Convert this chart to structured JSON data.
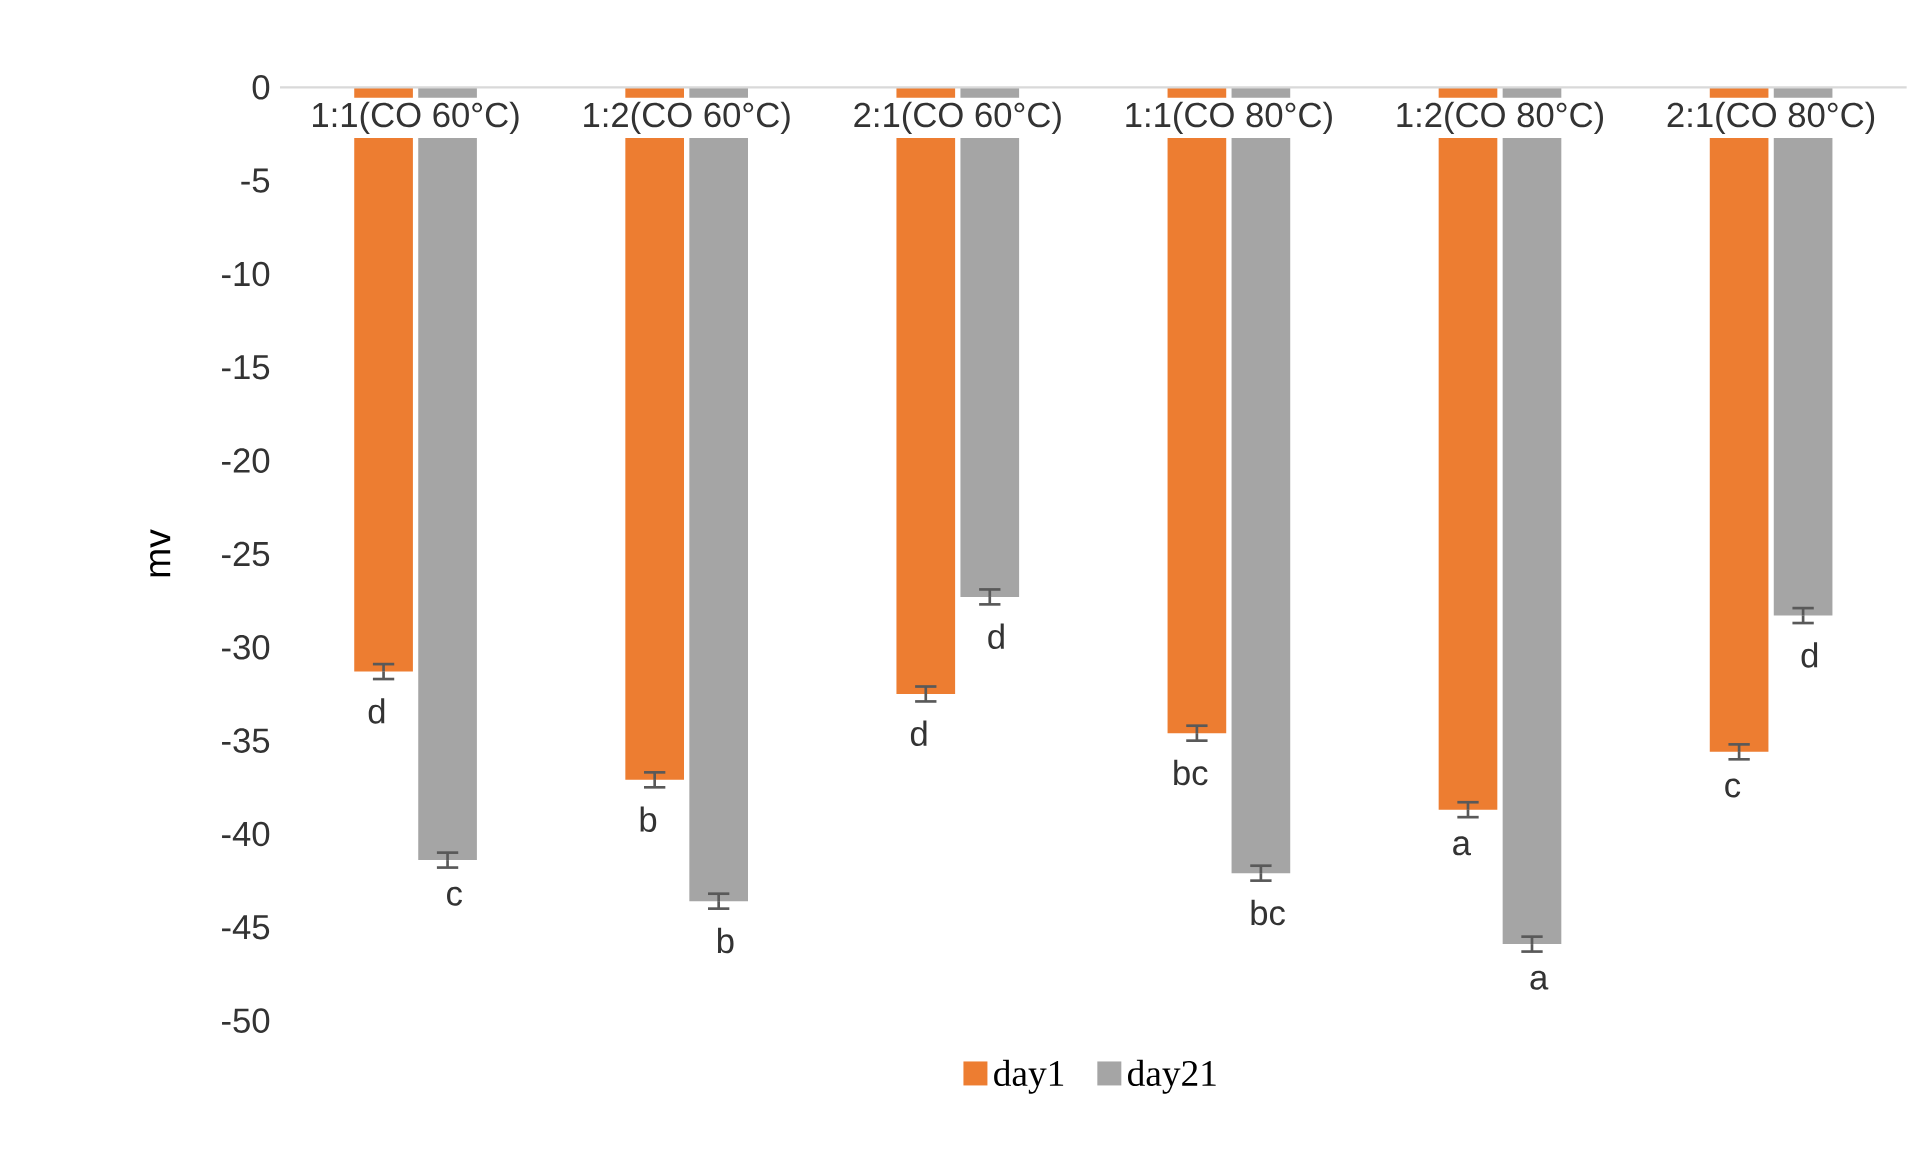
{
  "chart_data": {
    "type": "bar",
    "ylabel": "mv",
    "categories": [
      "1:1(CO 60°C)",
      "1:2(CO 60°C)",
      "2:1(CO 60°C)",
      "1:1(CO 80°C)",
      "1:2(CO 80°C)",
      "2:1(CO 80°C)"
    ],
    "series": [
      {
        "name": "day1",
        "color": "#ed7d31",
        "values": [
          -31.3,
          -37.1,
          -32.5,
          -34.6,
          -38.7,
          -35.6
        ],
        "errors": [
          0.4,
          0.4,
          0.4,
          0.4,
          0.4,
          0.4
        ],
        "value_labels": [
          "d",
          "b",
          "d",
          "bc",
          "a",
          "c"
        ]
      },
      {
        "name": "day21",
        "color": "#a5a5a5",
        "values": [
          -41.4,
          -43.6,
          -27.3,
          -42.1,
          -45.9,
          -28.3
        ],
        "errors": [
          0.4,
          0.4,
          0.4,
          0.4,
          0.4,
          0.4
        ],
        "value_labels": [
          "c",
          "b",
          "d",
          "bc",
          "a",
          "d"
        ]
      }
    ],
    "ylim": [
      -50,
      0
    ],
    "yticks": [
      0,
      -5,
      -10,
      -15,
      -20,
      -25,
      -30,
      -35,
      -40,
      -45,
      -50
    ],
    "grid": false,
    "legend": "bottom"
  }
}
